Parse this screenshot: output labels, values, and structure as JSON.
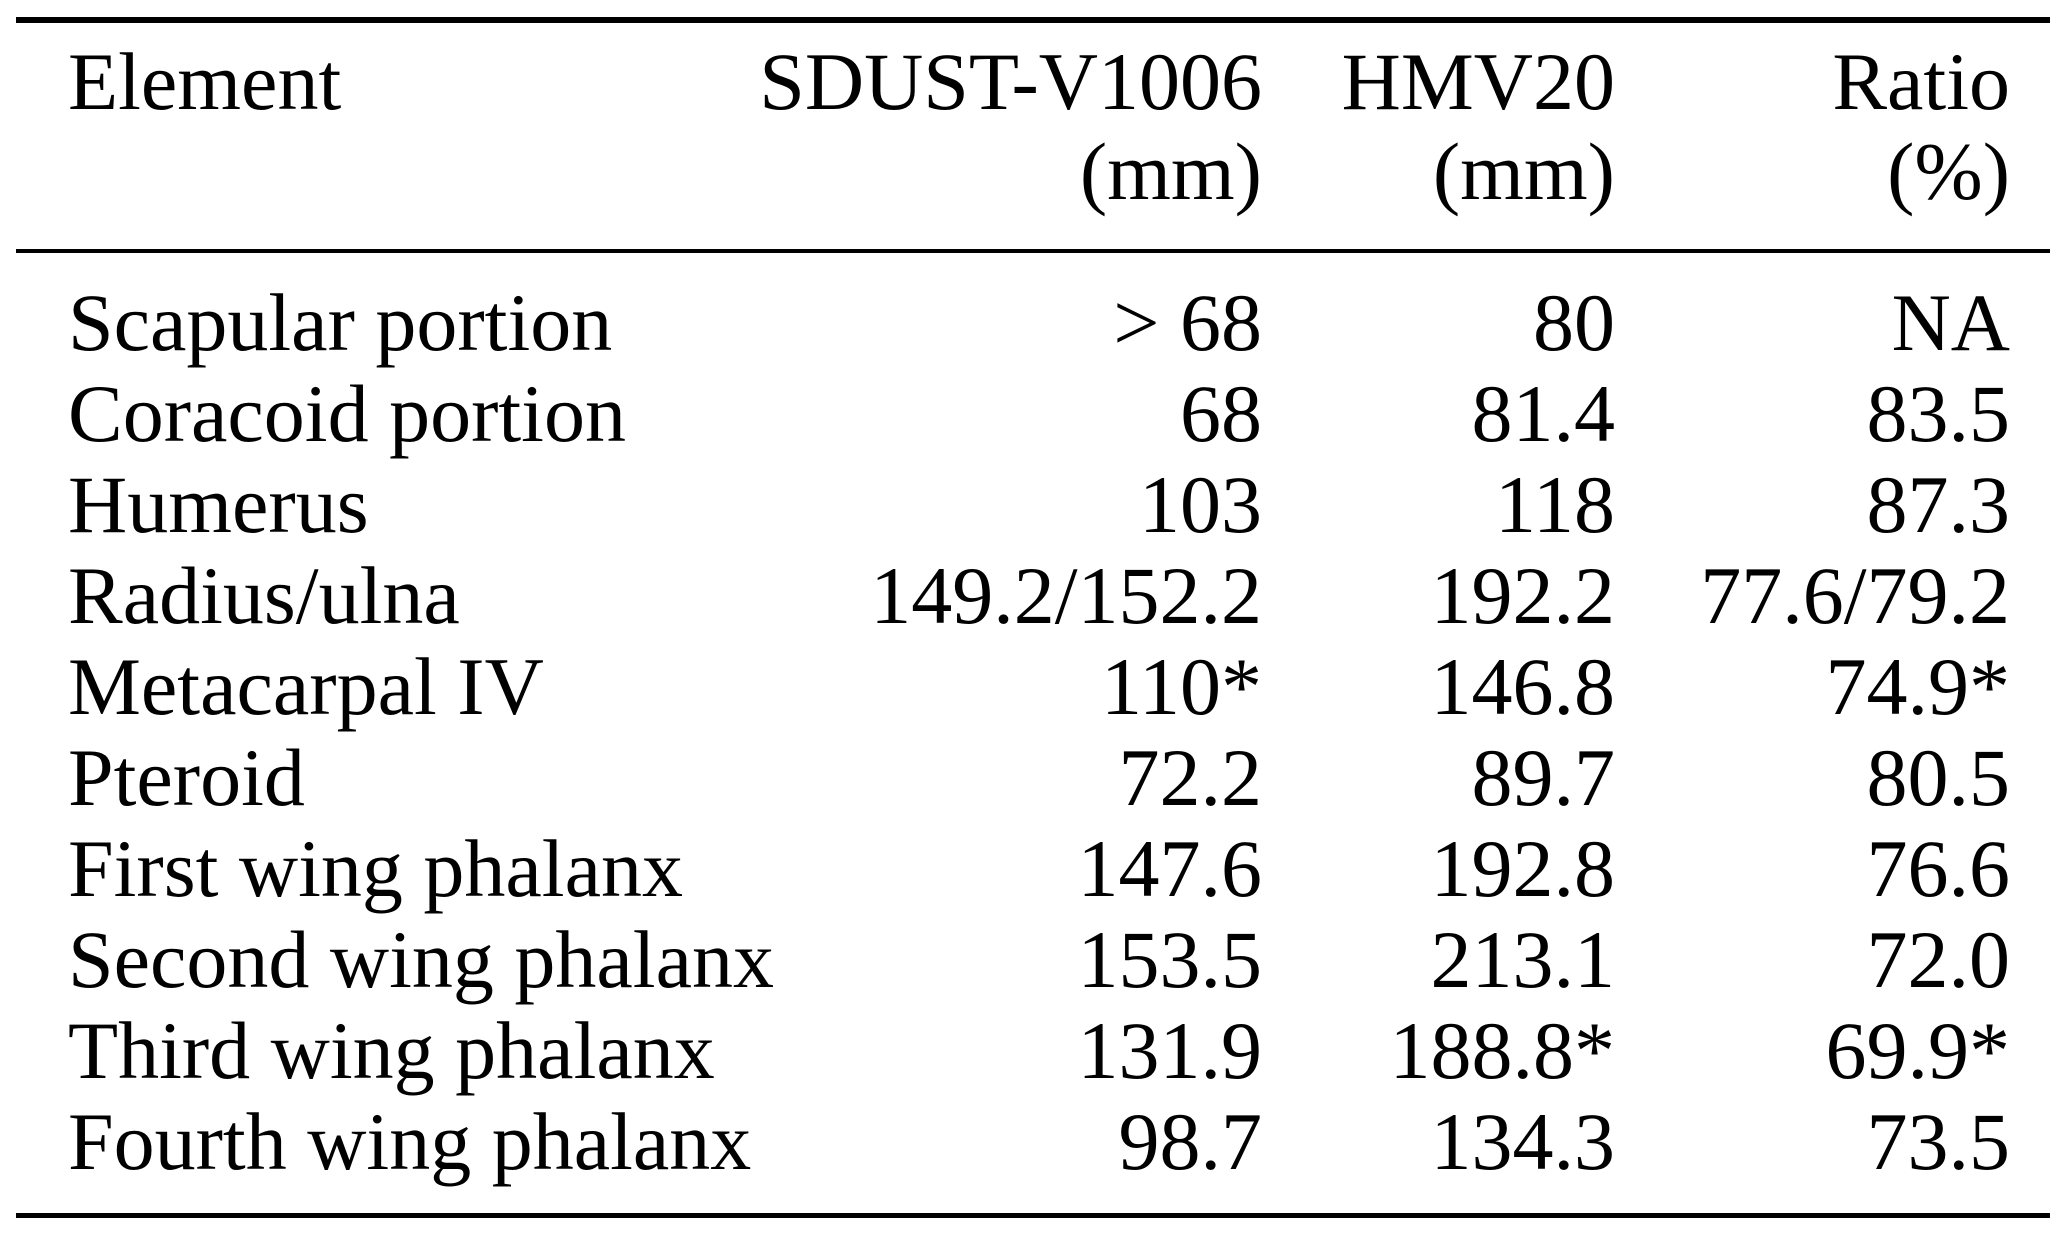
{
  "page": {
    "background_color": "#ffffff",
    "text_color": "#000000",
    "rule_color": "#000000"
  },
  "table": {
    "columns": [
      {
        "label": "Element",
        "unit": ""
      },
      {
        "label": "SDUST-V1006",
        "unit": "(mm)"
      },
      {
        "label": "HMV20",
        "unit": "(mm)"
      },
      {
        "label": "Ratio",
        "unit": "(%)"
      }
    ],
    "rows": [
      {
        "element": "Scapular portion",
        "sdust_v1006": "> 68",
        "hmv20": "80",
        "ratio": "NA"
      },
      {
        "element": "Coracoid portion",
        "sdust_v1006": "68",
        "hmv20": "81.4",
        "ratio": "83.5"
      },
      {
        "element": "Humerus",
        "sdust_v1006": "103",
        "hmv20": "118",
        "ratio": "87.3"
      },
      {
        "element": "Radius/ulna",
        "sdust_v1006": "149.2/152.2",
        "hmv20": "192.2",
        "ratio": "77.6/79.2"
      },
      {
        "element": "Metacarpal IV",
        "sdust_v1006": "110*",
        "hmv20": "146.8",
        "ratio": "74.9*"
      },
      {
        "element": "Pteroid",
        "sdust_v1006": "72.2",
        "hmv20": "89.7",
        "ratio": "80.5"
      },
      {
        "element": "First wing phalanx",
        "sdust_v1006": "147.6",
        "hmv20": "192.8",
        "ratio": "76.6"
      },
      {
        "element": "Second wing phalanx",
        "sdust_v1006": "153.5",
        "hmv20": "213.1",
        "ratio": "72.0"
      },
      {
        "element": "Third wing phalanx",
        "sdust_v1006": "131.9",
        "hmv20": "188.8*",
        "ratio": "69.9*"
      },
      {
        "element": "Fourth wing phalanx",
        "sdust_v1006": "98.7",
        "hmv20": "134.3",
        "ratio": "73.5"
      }
    ]
  }
}
